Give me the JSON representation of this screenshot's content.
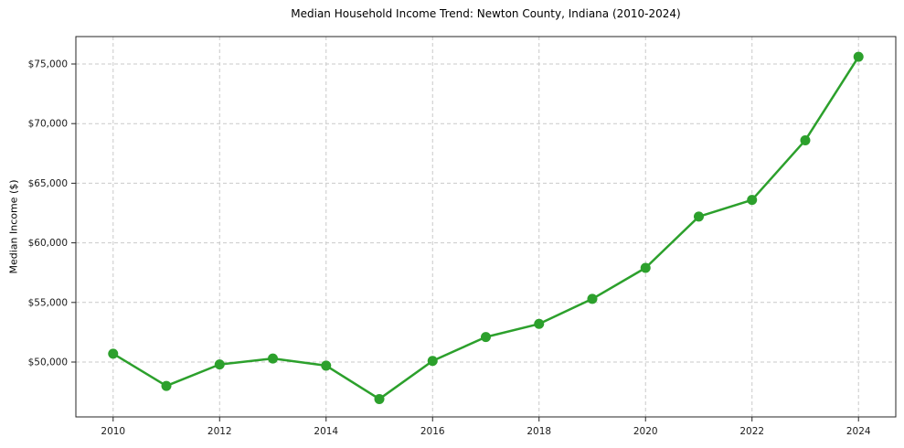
{
  "chart_data": {
    "type": "line",
    "title": "Median Household Income Trend: Newton County, Indiana (2010-2024)",
    "xlabel": "",
    "ylabel": "Median Income ($)",
    "x": [
      2010,
      2011,
      2012,
      2013,
      2014,
      2015,
      2016,
      2017,
      2018,
      2019,
      2020,
      2021,
      2022,
      2023,
      2024
    ],
    "values": [
      50700,
      48000,
      49800,
      50300,
      49700,
      46900,
      50100,
      52100,
      53200,
      55300,
      57900,
      62200,
      63600,
      68600,
      75600
    ],
    "xticks": [
      2010,
      2012,
      2014,
      2016,
      2018,
      2020,
      2022,
      2024
    ],
    "xtick_labels": [
      "2010",
      "2012",
      "2014",
      "2016",
      "2018",
      "2020",
      "2022",
      "2024"
    ],
    "yticks": [
      50000,
      55000,
      60000,
      65000,
      70000,
      75000
    ],
    "ytick_labels": [
      "$50,000",
      "$55,000",
      "$60,000",
      "$65,000",
      "$70,000",
      "$75,000"
    ],
    "xlim": [
      2009.3,
      2024.7
    ],
    "ylim": [
      45400,
      77300
    ],
    "grid": true,
    "grid_style": "dashed",
    "legend": "none",
    "line_color": "#2ca02c",
    "marker_color": "#2ca02c",
    "grid_color": "#c9c9c9",
    "axis_color": "#262626",
    "text_color": "#1a1a1a",
    "background_color": "#ffffff"
  }
}
